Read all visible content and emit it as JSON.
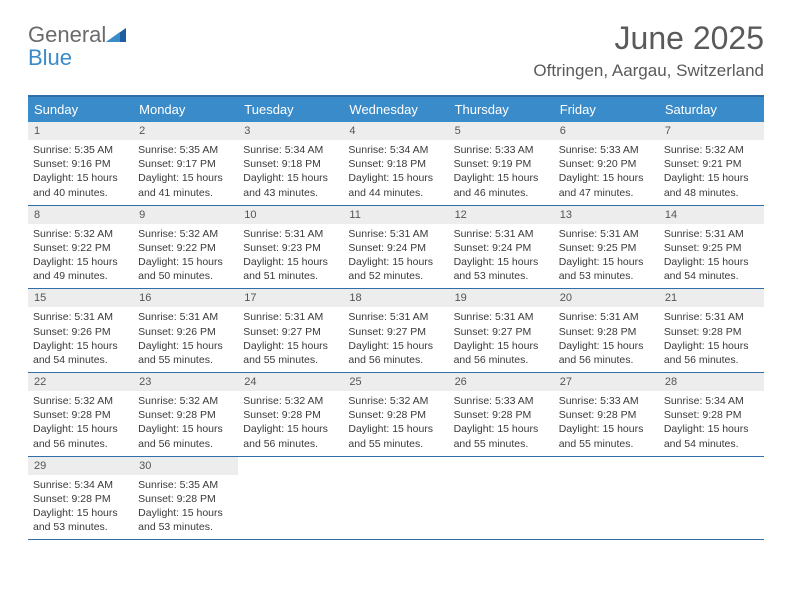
{
  "brand": {
    "general": "General",
    "blue": "Blue"
  },
  "title": "June 2025",
  "location": "Oftringen, Aargau, Switzerland",
  "colors": {
    "header_blue": "#3a8bc9",
    "border_blue": "#2f6fa8",
    "daynum_bg": "#ededed",
    "text": "#3a3a3a",
    "title_text": "#5a5a5a"
  },
  "dow": [
    "Sunday",
    "Monday",
    "Tuesday",
    "Wednesday",
    "Thursday",
    "Friday",
    "Saturday"
  ],
  "weeks": [
    [
      {
        "n": "1",
        "sr": "5:35 AM",
        "ss": "9:16 PM",
        "dl": "15 hours and 40 minutes."
      },
      {
        "n": "2",
        "sr": "5:35 AM",
        "ss": "9:17 PM",
        "dl": "15 hours and 41 minutes."
      },
      {
        "n": "3",
        "sr": "5:34 AM",
        "ss": "9:18 PM",
        "dl": "15 hours and 43 minutes."
      },
      {
        "n": "4",
        "sr": "5:34 AM",
        "ss": "9:18 PM",
        "dl": "15 hours and 44 minutes."
      },
      {
        "n": "5",
        "sr": "5:33 AM",
        "ss": "9:19 PM",
        "dl": "15 hours and 46 minutes."
      },
      {
        "n": "6",
        "sr": "5:33 AM",
        "ss": "9:20 PM",
        "dl": "15 hours and 47 minutes."
      },
      {
        "n": "7",
        "sr": "5:32 AM",
        "ss": "9:21 PM",
        "dl": "15 hours and 48 minutes."
      }
    ],
    [
      {
        "n": "8",
        "sr": "5:32 AM",
        "ss": "9:22 PM",
        "dl": "15 hours and 49 minutes."
      },
      {
        "n": "9",
        "sr": "5:32 AM",
        "ss": "9:22 PM",
        "dl": "15 hours and 50 minutes."
      },
      {
        "n": "10",
        "sr": "5:31 AM",
        "ss": "9:23 PM",
        "dl": "15 hours and 51 minutes."
      },
      {
        "n": "11",
        "sr": "5:31 AM",
        "ss": "9:24 PM",
        "dl": "15 hours and 52 minutes."
      },
      {
        "n": "12",
        "sr": "5:31 AM",
        "ss": "9:24 PM",
        "dl": "15 hours and 53 minutes."
      },
      {
        "n": "13",
        "sr": "5:31 AM",
        "ss": "9:25 PM",
        "dl": "15 hours and 53 minutes."
      },
      {
        "n": "14",
        "sr": "5:31 AM",
        "ss": "9:25 PM",
        "dl": "15 hours and 54 minutes."
      }
    ],
    [
      {
        "n": "15",
        "sr": "5:31 AM",
        "ss": "9:26 PM",
        "dl": "15 hours and 54 minutes."
      },
      {
        "n": "16",
        "sr": "5:31 AM",
        "ss": "9:26 PM",
        "dl": "15 hours and 55 minutes."
      },
      {
        "n": "17",
        "sr": "5:31 AM",
        "ss": "9:27 PM",
        "dl": "15 hours and 55 minutes."
      },
      {
        "n": "18",
        "sr": "5:31 AM",
        "ss": "9:27 PM",
        "dl": "15 hours and 56 minutes."
      },
      {
        "n": "19",
        "sr": "5:31 AM",
        "ss": "9:27 PM",
        "dl": "15 hours and 56 minutes."
      },
      {
        "n": "20",
        "sr": "5:31 AM",
        "ss": "9:28 PM",
        "dl": "15 hours and 56 minutes."
      },
      {
        "n": "21",
        "sr": "5:31 AM",
        "ss": "9:28 PM",
        "dl": "15 hours and 56 minutes."
      }
    ],
    [
      {
        "n": "22",
        "sr": "5:32 AM",
        "ss": "9:28 PM",
        "dl": "15 hours and 56 minutes."
      },
      {
        "n": "23",
        "sr": "5:32 AM",
        "ss": "9:28 PM",
        "dl": "15 hours and 56 minutes."
      },
      {
        "n": "24",
        "sr": "5:32 AM",
        "ss": "9:28 PM",
        "dl": "15 hours and 56 minutes."
      },
      {
        "n": "25",
        "sr": "5:32 AM",
        "ss": "9:28 PM",
        "dl": "15 hours and 55 minutes."
      },
      {
        "n": "26",
        "sr": "5:33 AM",
        "ss": "9:28 PM",
        "dl": "15 hours and 55 minutes."
      },
      {
        "n": "27",
        "sr": "5:33 AM",
        "ss": "9:28 PM",
        "dl": "15 hours and 55 minutes."
      },
      {
        "n": "28",
        "sr": "5:34 AM",
        "ss": "9:28 PM",
        "dl": "15 hours and 54 minutes."
      }
    ],
    [
      {
        "n": "29",
        "sr": "5:34 AM",
        "ss": "9:28 PM",
        "dl": "15 hours and 53 minutes."
      },
      {
        "n": "30",
        "sr": "5:35 AM",
        "ss": "9:28 PM",
        "dl": "15 hours and 53 minutes."
      },
      null,
      null,
      null,
      null,
      null
    ]
  ],
  "labels": {
    "sunrise": "Sunrise: ",
    "sunset": "Sunset: ",
    "daylight": "Daylight: "
  }
}
